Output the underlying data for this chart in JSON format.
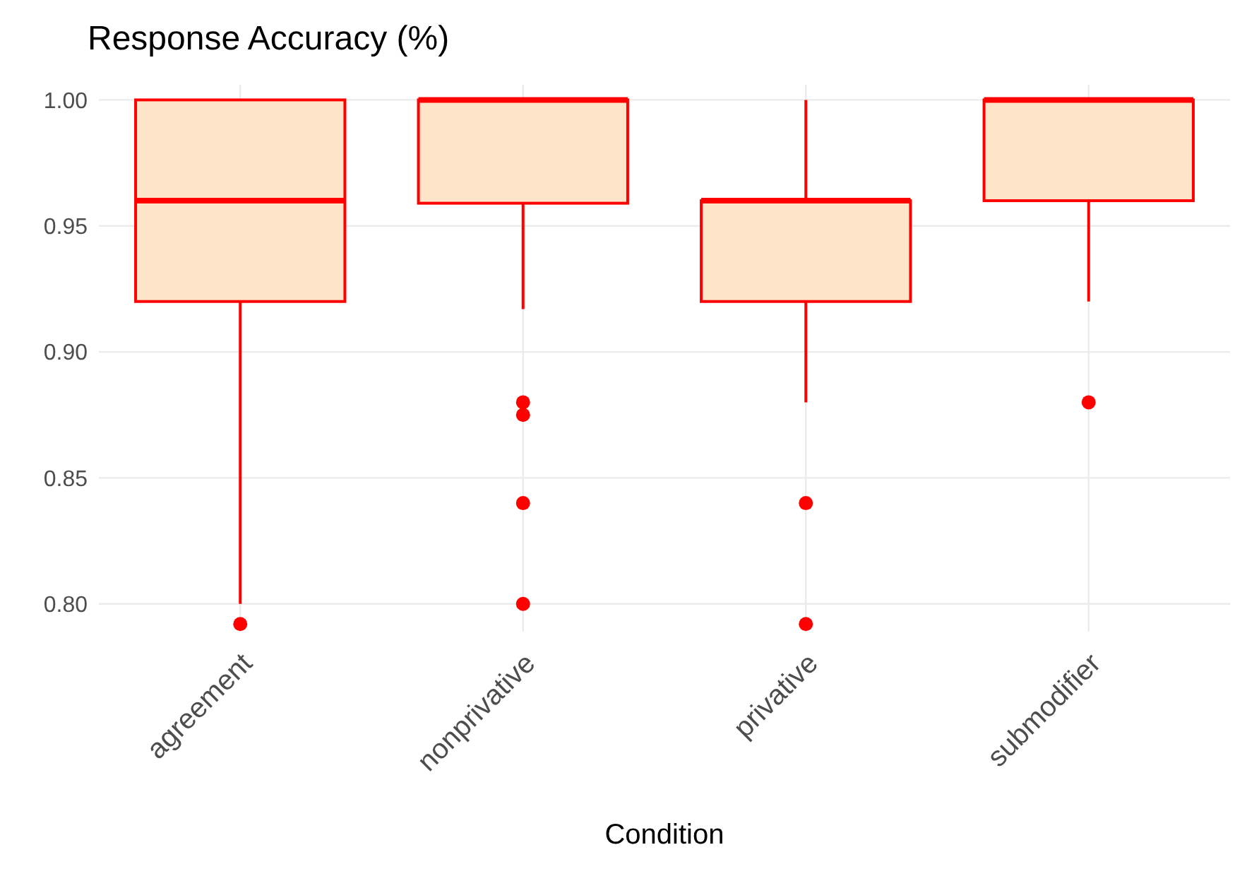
{
  "chart_data": {
    "type": "box",
    "title": "Response Accuracy (%)",
    "xlabel": "Condition",
    "categories": [
      "agreement",
      "nonprivative",
      "privative",
      "submodifier"
    ],
    "color": "#ff0000",
    "colors": [
      "#fee4c8",
      "#fee4c8",
      "#fee4c8",
      "#fee4c8"
    ],
    "boxes": [
      {
        "low": 0.8,
        "q1": 0.92,
        "median": 0.96,
        "q3": 1.0,
        "high": 1.0,
        "outliers": [
          0.792
        ]
      },
      {
        "low": 0.917,
        "q1": 0.959,
        "median": 1.0,
        "q3": 1.0,
        "high": 1.0,
        "outliers": [
          0.88,
          0.875,
          0.84,
          0.8
        ]
      },
      {
        "low": 0.88,
        "q1": 0.92,
        "median": 0.96,
        "q3": 0.96,
        "high": 1.0,
        "outliers": [
          0.84,
          0.792
        ]
      },
      {
        "low": 0.92,
        "q1": 0.96,
        "median": 1.0,
        "q3": 1.0,
        "high": 1.0,
        "outliers": [
          0.88
        ]
      }
    ],
    "ylim": [
      0.789,
      1.006
    ],
    "yticks": [
      {
        "value": 0.8,
        "label": "0.80"
      },
      {
        "value": 0.85,
        "label": "0.85"
      },
      {
        "value": 0.9,
        "label": "0.90"
      },
      {
        "value": 0.95,
        "label": "0.95"
      },
      {
        "value": 1.0,
        "label": "1.00"
      }
    ],
    "grid": true
  }
}
